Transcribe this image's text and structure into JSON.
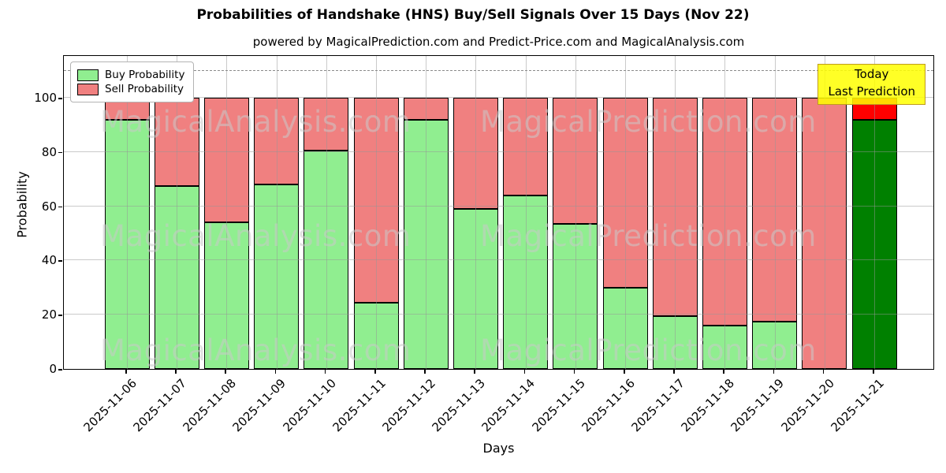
{
  "title": "Probabilities of Handshake (HNS) Buy/Sell Signals Over 15 Days (Nov 22)",
  "subtitle": "powered by MagicalPrediction.com and Predict-Price.com and MagicalAnalysis.com",
  "watermark": {
    "left": "MagicalAnalysis.com",
    "right": "MagicalPrediction.com"
  },
  "legend": {
    "items": [
      {
        "label": "Buy Probability",
        "color": "#90ee90"
      },
      {
        "label": "Sell Probability",
        "color": "#f08080"
      }
    ]
  },
  "annotation": {
    "line1": "Today",
    "line2": "Last Prediction",
    "face": "#ffff00",
    "edge": "#bf9b1e"
  },
  "axes": {
    "xlabel": "Days",
    "ylabel": "Probability",
    "yticks": [
      0,
      20,
      40,
      60,
      80,
      100
    ]
  },
  "chart_data": {
    "type": "bar",
    "stacked": true,
    "title": "Probabilities of Handshake (HNS) Buy/Sell Signals Over 15 Days (Nov 22)",
    "xlabel": "Days",
    "ylabel": "Probability",
    "ylim": [
      0,
      116
    ],
    "grid": true,
    "legend_position": "upper left",
    "threshold_line": {
      "y": 110,
      "style": "dashed",
      "color": "#808080"
    },
    "categories": [
      "2025-11-06",
      "2025-11-07",
      "2025-11-08",
      "2025-11-09",
      "2025-11-10",
      "2025-11-11",
      "2025-11-12",
      "2025-11-13",
      "2025-11-14",
      "2025-11-15",
      "2025-11-16",
      "2025-11-17",
      "2025-11-18",
      "2025-11-19",
      "2025-11-20",
      "2025-11-21"
    ],
    "series": [
      {
        "name": "Buy Probability",
        "color": "#90ee90",
        "values": [
          92,
          67.5,
          54,
          68,
          80.5,
          24.5,
          92,
          59,
          64,
          53.5,
          30,
          19.5,
          16,
          17.5,
          0,
          92
        ]
      },
      {
        "name": "Sell Probability",
        "color": "#f08080",
        "values": [
          8,
          32.5,
          46,
          32,
          19.5,
          75.5,
          8,
          41,
          36,
          46.5,
          70,
          80.5,
          84,
          82.5,
          100,
          8
        ]
      }
    ],
    "today": {
      "index": 15,
      "buy_color": "#008000",
      "sell_color": "#ff0000"
    }
  }
}
